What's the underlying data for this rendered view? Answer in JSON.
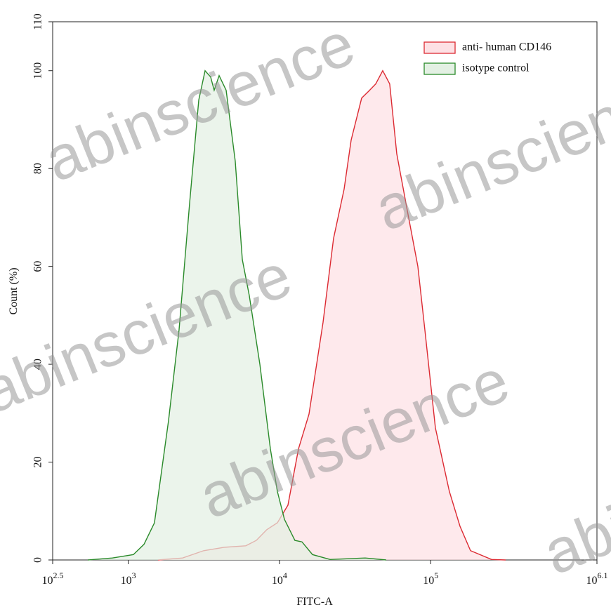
{
  "chart_data": {
    "type": "area",
    "xlabel": "FITC-A",
    "ylabel": "Count  (%)",
    "watermark": "abinscience",
    "xscale": "log",
    "xlim": [
      316.23,
      1258925
    ],
    "xticks": [
      {
        "value": 316.23,
        "label": "10^2.5"
      },
      {
        "value": 1000,
        "label": "10^3"
      },
      {
        "value": 10000,
        "label": "10^4"
      },
      {
        "value": 100000,
        "label": "10^5"
      },
      {
        "value": 1258925,
        "label": "10^6.1"
      }
    ],
    "ylim": [
      0,
      110
    ],
    "yticks": [
      0,
      20,
      40,
      60,
      80,
      100,
      110
    ],
    "legend": "upper right",
    "series": [
      {
        "name": "anti- human CD146",
        "color": "#dc2a32",
        "fill": "#fde0e4",
        "x": [
          1574,
          2287,
          3154,
          4347,
          5990,
          7030,
          8250,
          9690,
          11380,
          13360,
          15680,
          19410,
          22790,
          26770,
          29790,
          34970,
          38910,
          43330,
          48200,
          53600,
          59700,
          70100,
          82300,
          91600,
          107500,
          133000,
          156300,
          183500,
          252900,
          313300
        ],
        "values": [
          0,
          0.4,
          1.9,
          2.6,
          2.9,
          4,
          6.2,
          7.6,
          11.2,
          22.7,
          29.8,
          48.5,
          65.7,
          75.8,
          85.8,
          94.4,
          95.8,
          97.3,
          100,
          97.3,
          83,
          71.4,
          60,
          47,
          27,
          14,
          6.9,
          1.9,
          0.1,
          0
        ]
      },
      {
        "name": "isotype control",
        "color": "#2a8a2a",
        "fill": "#e3f0e3",
        "x": [
          540,
          785,
          1081,
          1271,
          1490,
          1845,
          2167,
          2547,
          2926,
          3221,
          3508,
          3700,
          3990,
          4440,
          5100,
          5680,
          6320,
          7420,
          8710,
          9690,
          10790,
          12650,
          14090,
          16540,
          21630,
          36900,
          50800
        ],
        "values": [
          0,
          0.4,
          1.1,
          3.2,
          7.6,
          28.4,
          47,
          73,
          94,
          100,
          98.7,
          96,
          99,
          96,
          81.5,
          61.4,
          54,
          40,
          22.7,
          14,
          8.3,
          4,
          3.7,
          1.1,
          0.1,
          0.4,
          0
        ]
      }
    ]
  }
}
